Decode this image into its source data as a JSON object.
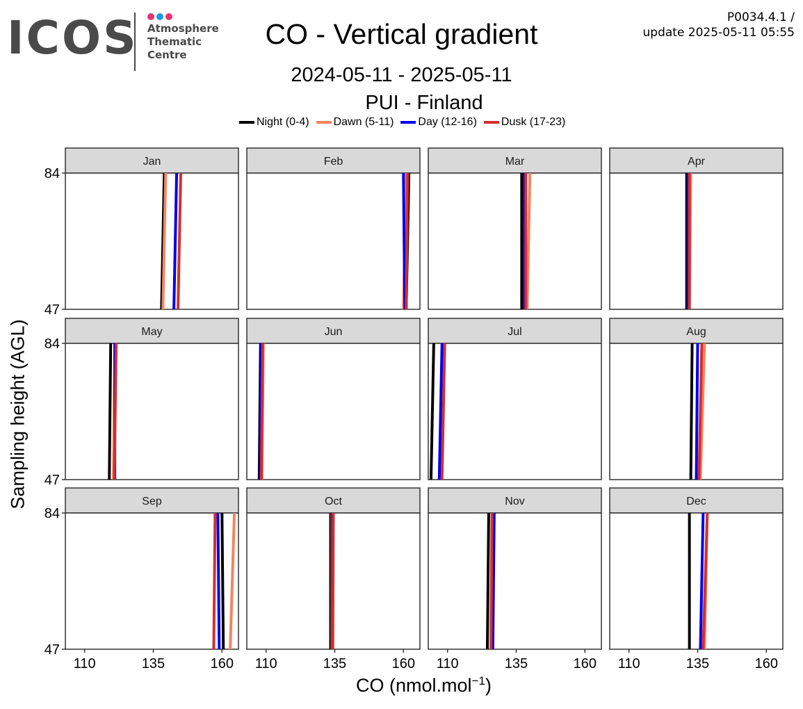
{
  "logo": {
    "wordmark": "ICOS",
    "subtitle_lines": [
      "Atmosphere",
      "Thematic",
      "Centre"
    ],
    "dot_colors": [
      "#e8336f",
      "#1e9ae0",
      "#e8336f"
    ]
  },
  "header": {
    "title": "CO - Vertical gradient",
    "period": "2024-05-11 - 2025-05-11",
    "station": "PUI - Finland",
    "version": "P0034.4.1 /",
    "update": "update  2025-05-11 05:55"
  },
  "chart_data": {
    "type": "line",
    "xlabel": "CO (nmol.mol",
    "xlabel_superscript": "−1",
    "xlabel_suffix": ")",
    "ylabel": "Sampling height (AGL)",
    "xlim": [
      103,
      166
    ],
    "ylim": [
      47,
      84
    ],
    "x_ticks": [
      110,
      135,
      160
    ],
    "y_ticks": [
      47,
      84
    ],
    "grid": false,
    "legend_position": "top-center",
    "series": [
      {
        "name": "Night (0-4)",
        "color": "#000000"
      },
      {
        "name": "Dawn (5-11)",
        "color": "#f4845f"
      },
      {
        "name": "Day (12-16)",
        "color": "#0000ee"
      },
      {
        "name": "Dusk (17-23)",
        "color": "#d32f2f"
      }
    ],
    "panels": [
      {
        "month": "Jan",
        "values": {
          "Night (0-4)": [
            139.0,
            138.0
          ],
          "Dawn (5-11)": [
            139.5,
            138.5
          ],
          "Day (12-16)": [
            143.5,
            142.5
          ],
          "Dusk (17-23)": [
            145.0,
            144.0
          ]
        }
      },
      {
        "month": "Feb",
        "values": {
          "Night (0-4)": [
            162.0,
            161.0
          ],
          "Dawn (5-11)": [
            161.0,
            160.0
          ],
          "Day (12-16)": [
            160.0,
            160.5
          ],
          "Dusk (17-23)": [
            161.5,
            161.0
          ]
        }
      },
      {
        "month": "Mar",
        "values": {
          "Night (0-4)": [
            137.0,
            137.0
          ],
          "Dawn (5-11)": [
            140.0,
            139.0
          ],
          "Day (12-16)": [
            138.0,
            138.0
          ],
          "Dusk (17-23)": [
            138.5,
            138.5
          ]
        }
      },
      {
        "month": "Apr",
        "values": {
          "Night (0-4)": [
            131.0,
            131.0
          ],
          "Dawn (5-11)": [
            132.5,
            132.0
          ],
          "Day (12-16)": [
            131.5,
            131.5
          ],
          "Dusk (17-23)": [
            132.0,
            132.0
          ]
        }
      },
      {
        "month": "May",
        "values": {
          "Night (0-4)": [
            119.5,
            119.0
          ],
          "Dawn (5-11)": [
            121.0,
            120.5
          ],
          "Day (12-16)": [
            121.0,
            121.0
          ],
          "Dusk (17-23)": [
            121.5,
            120.8
          ]
        }
      },
      {
        "month": "Jun",
        "values": {
          "Night (0-4)": [
            108.0,
            107.5
          ],
          "Dawn (5-11)": [
            109.0,
            108.5
          ],
          "Day (12-16)": [
            108.3,
            107.8
          ],
          "Dusk (17-23)": [
            108.8,
            108.3
          ]
        }
      },
      {
        "month": "Jul",
        "values": {
          "Night (0-4)": [
            105.0,
            104.0
          ],
          "Dawn (5-11)": [
            108.5,
            107.5
          ],
          "Day (12-16)": [
            108.0,
            107.0
          ],
          "Dusk (17-23)": [
            109.0,
            108.0
          ]
        }
      },
      {
        "month": "Aug",
        "values": {
          "Night (0-4)": [
            133.0,
            132.5
          ],
          "Dawn (5-11)": [
            137.5,
            136.0
          ],
          "Day (12-16)": [
            135.0,
            134.5
          ],
          "Dusk (17-23)": [
            136.5,
            135.5
          ]
        }
      },
      {
        "month": "Sep",
        "values": {
          "Night (0-4)": [
            160.0,
            160.5
          ],
          "Dawn (5-11)": [
            164.5,
            163.0
          ],
          "Day (12-16)": [
            158.5,
            159.0
          ],
          "Dusk (17-23)": [
            157.5,
            157.0
          ]
        }
      },
      {
        "month": "Oct",
        "values": {
          "Night (0-4)": [
            133.5,
            133.5
          ],
          "Dawn (5-11)": [
            134.0,
            134.0
          ],
          "Day (12-16)": [
            134.2,
            134.2
          ],
          "Dusk (17-23)": [
            134.5,
            134.3
          ]
        }
      },
      {
        "month": "Nov",
        "values": {
          "Night (0-4)": [
            125.0,
            124.5
          ],
          "Dawn (5-11)": [
            126.5,
            126.0
          ],
          "Day (12-16)": [
            127.0,
            126.5
          ],
          "Dusk (17-23)": [
            126.2,
            125.8
          ]
        }
      },
      {
        "month": "Dec",
        "values": {
          "Night (0-4)": [
            132.0,
            132.0
          ],
          "Dawn (5-11)": [
            138.5,
            137.5
          ],
          "Day (12-16)": [
            137.0,
            136.0
          ],
          "Dusk (17-23)": [
            138.5,
            137.0
          ]
        }
      }
    ]
  }
}
